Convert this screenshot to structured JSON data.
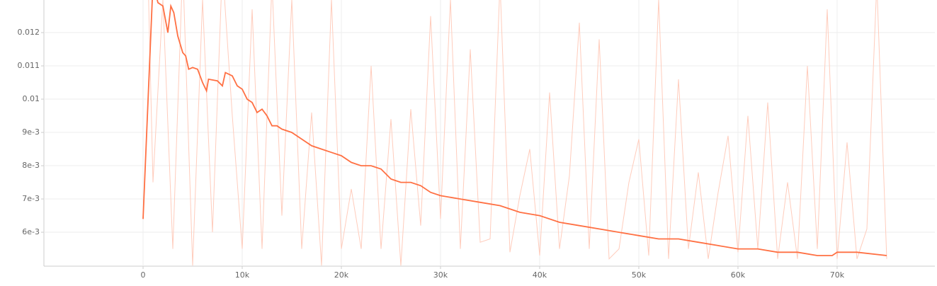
{
  "chart_data": {
    "type": "line",
    "xlim": [
      -10000,
      79860
    ],
    "ylim": [
      0.00498,
      0.01298
    ],
    "xticks": [
      {
        "value": 0,
        "label": "0"
      },
      {
        "value": 10000,
        "label": "10k"
      },
      {
        "value": 20000,
        "label": "20k"
      },
      {
        "value": 30000,
        "label": "30k"
      },
      {
        "value": 40000,
        "label": "40k"
      },
      {
        "value": 50000,
        "label": "50k"
      },
      {
        "value": 60000,
        "label": "60k"
      },
      {
        "value": 70000,
        "label": "70k"
      }
    ],
    "yticks": [
      {
        "value": 0.006,
        "label": "6e-3"
      },
      {
        "value": 0.007,
        "label": "7e-3"
      },
      {
        "value": 0.008,
        "label": "8e-3"
      },
      {
        "value": 0.009,
        "label": "9e-3"
      },
      0.01,
      0.011,
      0.012
    ],
    "grid": true,
    "series": [
      {
        "color": "#ffccbc",
        "x": [
          0,
          1000,
          2000,
          3000,
          4000,
          5000,
          6000,
          7000,
          8000,
          9000,
          10000,
          11000,
          12000,
          13000,
          14000,
          15000,
          16000,
          17000,
          18000,
          19000,
          20000,
          21000,
          22000,
          23000,
          24000,
          25000,
          26000,
          27000,
          28000,
          29000,
          30000,
          31000,
          32000,
          33000,
          34000,
          35000,
          36000,
          37000,
          38000,
          39000,
          40000,
          41000,
          42000,
          43000,
          44000,
          45000,
          46000,
          47000,
          48000,
          49000,
          50000,
          51000,
          52000,
          53000,
          54000,
          55000,
          56000,
          57000,
          58000,
          59000,
          60000,
          61000,
          62000,
          63000,
          64000,
          65000,
          66000,
          67000,
          68000,
          69000,
          70000,
          71000,
          72000,
          73000,
          74000,
          75000
        ],
        "values": [
          0.02,
          0.0075,
          0.013,
          0.0055,
          0.014,
          0.005,
          0.013,
          0.006,
          0.014,
          0.0095,
          0.0055,
          0.0127,
          0.0055,
          0.0135,
          0.0065,
          0.013,
          0.0055,
          0.0096,
          0.005,
          0.013,
          0.0055,
          0.0073,
          0.0055,
          0.011,
          0.0055,
          0.0094,
          0.005,
          0.0097,
          0.0062,
          0.0125,
          0.0064,
          0.013,
          0.0055,
          0.0115,
          0.0057,
          0.0058,
          0.0135,
          0.0054,
          0.0071,
          0.0085,
          0.0053,
          0.0102,
          0.0055,
          0.0077,
          0.0123,
          0.0055,
          0.0118,
          0.0052,
          0.0055,
          0.0075,
          0.0088,
          0.0053,
          0.013,
          0.0052,
          0.0106,
          0.0055,
          0.0078,
          0.0052,
          0.0072,
          0.0089,
          0.0054,
          0.0095,
          0.0055,
          0.0099,
          0.0052,
          0.0075,
          0.0052,
          0.011,
          0.0055,
          0.0127,
          0.0052,
          0.0087,
          0.0052,
          0.0061,
          0.0135,
          0.0052
        ]
      },
      {
        "color": "#ff7043",
        "x": [
          0,
          1000,
          1500,
          2000,
          2500,
          2800,
          3100,
          3500,
          4000,
          4300,
          4600,
          5000,
          5500,
          6000,
          6400,
          6600,
          7500,
          8000,
          8300,
          9000,
          9500,
          10000,
          10500,
          11000,
          11500,
          12000,
          12500,
          13000,
          13500,
          14000,
          15000,
          16000,
          17000,
          18000,
          19000,
          20000,
          21000,
          22000,
          23000,
          24000,
          25000,
          26000,
          27000,
          28000,
          29000,
          30000,
          32000,
          34000,
          36000,
          38000,
          40000,
          42000,
          44000,
          46000,
          48000,
          50000,
          52000,
          54000,
          56000,
          58000,
          60000,
          62000,
          64000,
          66000,
          68000,
          69500,
          70000,
          72000,
          75000
        ],
        "values": [
          0.0064,
          0.0135,
          0.0129,
          0.0128,
          0.012,
          0.0128,
          0.0126,
          0.0119,
          0.0114,
          0.0113,
          0.0109,
          0.01095,
          0.0109,
          0.0105,
          0.01025,
          0.0106,
          0.01055,
          0.0104,
          0.0108,
          0.0107,
          0.0104,
          0.0103,
          0.01,
          0.0099,
          0.0096,
          0.0097,
          0.0095,
          0.0092,
          0.0092,
          0.0091,
          0.009,
          0.0088,
          0.0086,
          0.0085,
          0.0084,
          0.0083,
          0.0081,
          0.008,
          0.008,
          0.0079,
          0.0076,
          0.0075,
          0.0075,
          0.0074,
          0.0072,
          0.0071,
          0.007,
          0.0069,
          0.0068,
          0.0066,
          0.0065,
          0.0063,
          0.0062,
          0.0061,
          0.006,
          0.0059,
          0.0058,
          0.0058,
          0.0057,
          0.0056,
          0.0055,
          0.0055,
          0.0054,
          0.0054,
          0.0053,
          0.0053,
          0.0054,
          0.0054,
          0.0053
        ]
      }
    ]
  }
}
